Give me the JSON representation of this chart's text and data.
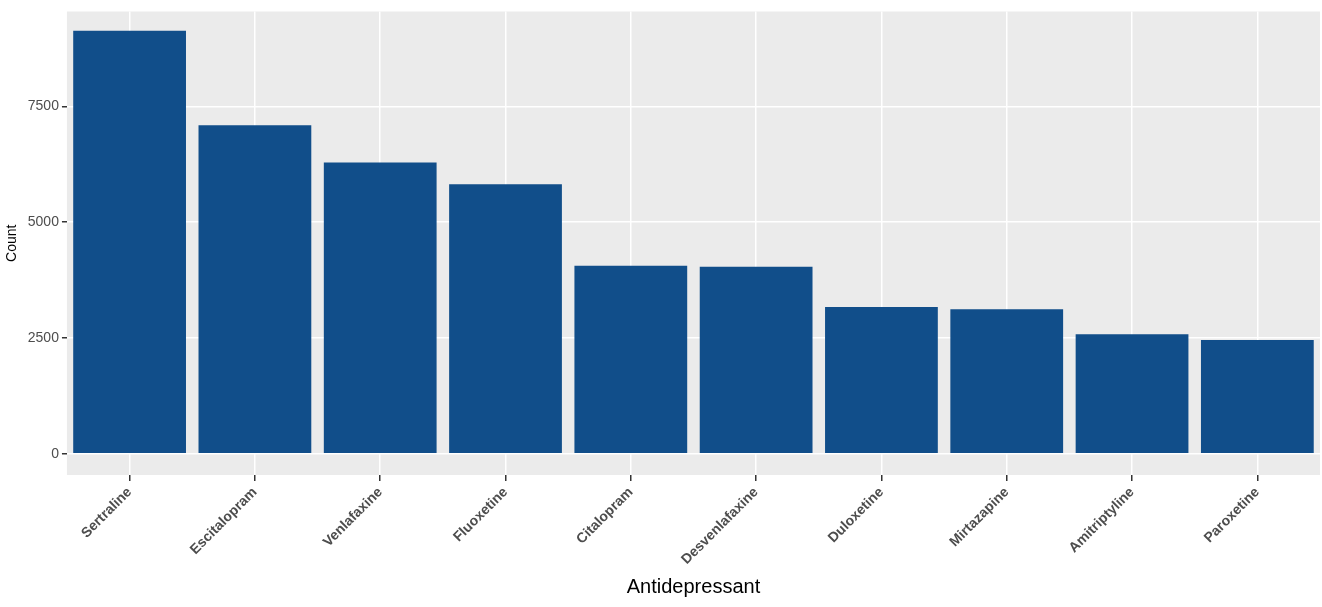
{
  "chart_data": {
    "type": "bar",
    "xlabel": "Antidepressant",
    "ylabel": "Count",
    "categories": [
      "Sertraline",
      "Escitalopram",
      "Venlafaxine",
      "Fluoxetine",
      "Citalopram",
      "Desvenlafaxine",
      "Duloxetine",
      "Mirtazapine",
      "Amitriptyline",
      "Paroxetine"
    ],
    "values": [
      9130,
      7090,
      6290,
      5820,
      4060,
      4040,
      3170,
      3120,
      2580,
      2460
    ],
    "color": "#114e8a",
    "ylim": [
      -457,
      9550
    ],
    "yticks": [
      0,
      2500,
      5000,
      7500
    ],
    "grid": true,
    "legend": false
  }
}
